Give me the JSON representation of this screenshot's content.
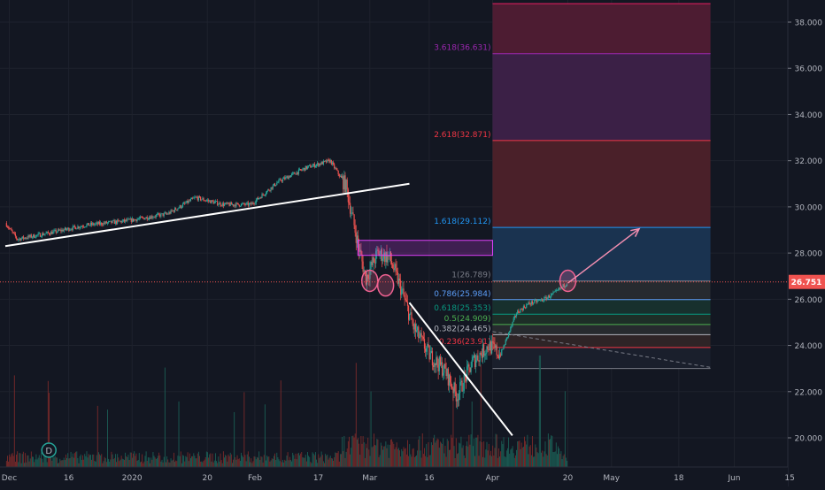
{
  "chart_data": {
    "type": "candlestick",
    "theme": "dark",
    "y_axis": {
      "position": "right",
      "range": [
        19.3,
        38.8
      ],
      "ticks": [
        20.0,
        22.0,
        24.0,
        26.0,
        28.0,
        30.0,
        32.0,
        34.0,
        36.0,
        38.0
      ],
      "tick_labels": [
        "20.000",
        "22.000",
        "24.000",
        "26.000",
        "28.000",
        "30.000",
        "32.000",
        "34.000",
        "36.000",
        "38.000"
      ]
    },
    "x_axis": {
      "labels": [
        {
          "label": "Dec",
          "date": "2019-12-01"
        },
        {
          "label": "16",
          "date": "2019-12-16"
        },
        {
          "label": "2020",
          "date": "2020-01-01"
        },
        {
          "label": "20",
          "date": "2020-01-20"
        },
        {
          "label": "Feb",
          "date": "2020-02-01"
        },
        {
          "label": "17",
          "date": "2020-02-17"
        },
        {
          "label": "Mar",
          "date": "2020-03-01"
        },
        {
          "label": "16",
          "date": "2020-03-16"
        },
        {
          "label": "Apr",
          "date": "2020-04-01"
        },
        {
          "label": "20",
          "date": "2020-04-20"
        },
        {
          "label": "May",
          "date": "2020-05-01"
        },
        {
          "label": "18",
          "date": "2020-05-18"
        },
        {
          "label": "Jun",
          "date": "2020-06-01"
        },
        {
          "label": "15",
          "date": "2020-06-15"
        }
      ]
    },
    "current_price": {
      "value": 26.751,
      "label": "26.751",
      "color": "#ef5350"
    },
    "price_path_anchors": [
      {
        "date": "2019-11-30",
        "price": 29.3
      },
      {
        "date": "2019-12-03",
        "price": 28.6
      },
      {
        "date": "2019-12-12",
        "price": 28.9
      },
      {
        "date": "2019-12-20",
        "price": 29.2
      },
      {
        "date": "2019-12-31",
        "price": 29.4
      },
      {
        "date": "2020-01-10",
        "price": 29.7
      },
      {
        "date": "2020-01-17",
        "price": 30.4
      },
      {
        "date": "2020-01-24",
        "price": 30.1
      },
      {
        "date": "2020-01-31",
        "price": 30.1
      },
      {
        "date": "2020-02-07",
        "price": 31.1
      },
      {
        "date": "2020-02-14",
        "price": 31.7
      },
      {
        "date": "2020-02-20",
        "price": 32.0
      },
      {
        "date": "2020-02-24",
        "price": 30.9
      },
      {
        "date": "2020-02-27",
        "price": 28.4
      },
      {
        "date": "2020-02-29",
        "price": 26.9
      },
      {
        "date": "2020-03-03",
        "price": 28.0
      },
      {
        "date": "2020-03-06",
        "price": 27.8
      },
      {
        "date": "2020-03-09",
        "price": 26.4
      },
      {
        "date": "2020-03-12",
        "price": 24.8
      },
      {
        "date": "2020-03-16",
        "price": 23.6
      },
      {
        "date": "2020-03-20",
        "price": 22.9
      },
      {
        "date": "2020-03-23",
        "price": 21.8
      },
      {
        "date": "2020-03-27",
        "price": 23.3
      },
      {
        "date": "2020-03-31",
        "price": 24.0
      },
      {
        "date": "2020-04-03",
        "price": 23.6
      },
      {
        "date": "2020-04-07",
        "price": 25.4
      },
      {
        "date": "2020-04-10",
        "price": 25.8
      },
      {
        "date": "2020-04-14",
        "price": 26.0
      },
      {
        "date": "2020-04-17",
        "price": 26.3
      },
      {
        "date": "2020-04-20",
        "price": 26.75
      }
    ],
    "fibonacci": {
      "date_start": "2020-04-01",
      "date_end": "2020-05-26",
      "levels": [
        {
          "label": "",
          "price": 23.0,
          "color": "#787b86"
        },
        {
          "label": "0.236(23.91)",
          "price": 23.91,
          "color": "#f23645"
        },
        {
          "label": "0.382(24.465)",
          "price": 24.465,
          "color": "#b2b5be"
        },
        {
          "label": "0.5(24.909)",
          "price": 24.909,
          "color": "#4caf50"
        },
        {
          "label": "0.618(25.353)",
          "price": 25.353,
          "color": "#089981"
        },
        {
          "label": "0.786(25.984)",
          "price": 25.984,
          "color": "#5b9cf6"
        },
        {
          "label": "1(26.789)",
          "price": 26.789,
          "color": "#787b86"
        },
        {
          "label": "1.618(29.112)",
          "price": 29.112,
          "color": "#2196f3"
        },
        {
          "label": "2.618(32.871)",
          "price": 32.871,
          "color": "#f23645"
        },
        {
          "label": "3.618(36.631)",
          "price": 36.631,
          "color": "#9c27b0"
        },
        {
          "label": "",
          "price": 38.8,
          "color": "#e91e63"
        }
      ],
      "bands": [
        {
          "from": 23.0,
          "to": 23.91,
          "color": "#1a1f2c"
        },
        {
          "from": 23.91,
          "to": 24.465,
          "color": "#2e2426"
        },
        {
          "from": 24.465,
          "to": 24.909,
          "color": "#262a2e"
        },
        {
          "from": 24.909,
          "to": 25.353,
          "color": "#1d2e27"
        },
        {
          "from": 25.353,
          "to": 25.984,
          "color": "#17302d"
        },
        {
          "from": 25.984,
          "to": 26.789,
          "color": "#262a2f"
        },
        {
          "from": 26.789,
          "to": 29.112,
          "color": "#1a3350"
        },
        {
          "from": 29.112,
          "to": 32.871,
          "color": "#4a2029"
        },
        {
          "from": 32.871,
          "to": 36.631,
          "color": "#3b2046"
        },
        {
          "from": 36.631,
          "to": 38.8,
          "color": "#4d1c32"
        }
      ]
    },
    "trendlines": [
      {
        "name": "uptrend-line",
        "from": {
          "date": "2019-11-30",
          "price": 28.3
        },
        "to": {
          "date": "2020-03-11",
          "price": 31.0
        },
        "color": "#ffffff"
      },
      {
        "name": "downtrend-line",
        "from": {
          "date": "2020-03-11",
          "price": 25.85
        },
        "to": {
          "date": "2020-04-06",
          "price": 20.1
        },
        "color": "#ffffff"
      }
    ],
    "dashed_line": {
      "from": {
        "date": "2020-04-01",
        "price": 24.6
      },
      "to": {
        "date": "2020-05-26",
        "price": 23.05
      },
      "color": "#787b86"
    },
    "resistance_box": {
      "date_start": "2020-02-27",
      "date_end": "2020-04-01",
      "price_top": 28.55,
      "price_bottom": 27.9,
      "color": "#e040fb"
    },
    "circle_markers": [
      {
        "date": "2020-03-01",
        "price": 26.8,
        "color": "#f06292"
      },
      {
        "date": "2020-03-05",
        "price": 26.6,
        "color": "#f06292"
      },
      {
        "date": "2020-04-20",
        "price": 26.8,
        "color": "#f06292"
      }
    ],
    "projection_arrow": {
      "from": {
        "date": "2020-04-20",
        "price": 26.7
      },
      "to": {
        "date": "2020-05-08",
        "price": 29.05
      },
      "color": "#f48fb1"
    },
    "dividend_marker": {
      "label": "D",
      "date": "2019-12-11"
    }
  }
}
